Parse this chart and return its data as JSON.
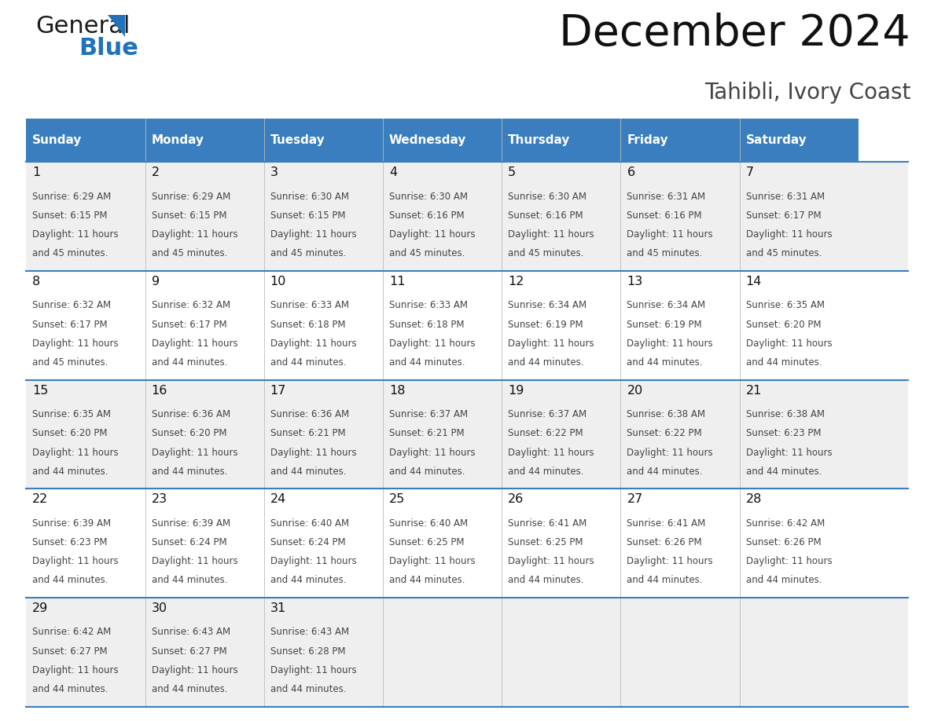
{
  "title": "December 2024",
  "subtitle": "Tahibli, Ivory Coast",
  "days_of_week": [
    "Sunday",
    "Monday",
    "Tuesday",
    "Wednesday",
    "Thursday",
    "Friday",
    "Saturday"
  ],
  "header_bg": "#3A7EBF",
  "header_text": "#FFFFFF",
  "row_bg_odd": "#EFEFEF",
  "row_bg_even": "#FFFFFF",
  "cell_text_color": "#444444",
  "day_num_color": "#111111",
  "border_color": "#3A7EBF",
  "calendar_data": [
    [
      {
        "day": 1,
        "sunrise": "6:29 AM",
        "sunset": "6:15 PM",
        "daylight_suffix": "45 minutes."
      },
      {
        "day": 2,
        "sunrise": "6:29 AM",
        "sunset": "6:15 PM",
        "daylight_suffix": "45 minutes."
      },
      {
        "day": 3,
        "sunrise": "6:30 AM",
        "sunset": "6:15 PM",
        "daylight_suffix": "45 minutes."
      },
      {
        "day": 4,
        "sunrise": "6:30 AM",
        "sunset": "6:16 PM",
        "daylight_suffix": "45 minutes."
      },
      {
        "day": 5,
        "sunrise": "6:30 AM",
        "sunset": "6:16 PM",
        "daylight_suffix": "45 minutes."
      },
      {
        "day": 6,
        "sunrise": "6:31 AM",
        "sunset": "6:16 PM",
        "daylight_suffix": "45 minutes."
      },
      {
        "day": 7,
        "sunrise": "6:31 AM",
        "sunset": "6:17 PM",
        "daylight_suffix": "45 minutes."
      }
    ],
    [
      {
        "day": 8,
        "sunrise": "6:32 AM",
        "sunset": "6:17 PM",
        "daylight_suffix": "45 minutes."
      },
      {
        "day": 9,
        "sunrise": "6:32 AM",
        "sunset": "6:17 PM",
        "daylight_suffix": "44 minutes."
      },
      {
        "day": 10,
        "sunrise": "6:33 AM",
        "sunset": "6:18 PM",
        "daylight_suffix": "44 minutes."
      },
      {
        "day": 11,
        "sunrise": "6:33 AM",
        "sunset": "6:18 PM",
        "daylight_suffix": "44 minutes."
      },
      {
        "day": 12,
        "sunrise": "6:34 AM",
        "sunset": "6:19 PM",
        "daylight_suffix": "44 minutes."
      },
      {
        "day": 13,
        "sunrise": "6:34 AM",
        "sunset": "6:19 PM",
        "daylight_suffix": "44 minutes."
      },
      {
        "day": 14,
        "sunrise": "6:35 AM",
        "sunset": "6:20 PM",
        "daylight_suffix": "44 minutes."
      }
    ],
    [
      {
        "day": 15,
        "sunrise": "6:35 AM",
        "sunset": "6:20 PM",
        "daylight_suffix": "44 minutes."
      },
      {
        "day": 16,
        "sunrise": "6:36 AM",
        "sunset": "6:20 PM",
        "daylight_suffix": "44 minutes."
      },
      {
        "day": 17,
        "sunrise": "6:36 AM",
        "sunset": "6:21 PM",
        "daylight_suffix": "44 minutes."
      },
      {
        "day": 18,
        "sunrise": "6:37 AM",
        "sunset": "6:21 PM",
        "daylight_suffix": "44 minutes."
      },
      {
        "day": 19,
        "sunrise": "6:37 AM",
        "sunset": "6:22 PM",
        "daylight_suffix": "44 minutes."
      },
      {
        "day": 20,
        "sunrise": "6:38 AM",
        "sunset": "6:22 PM",
        "daylight_suffix": "44 minutes."
      },
      {
        "day": 21,
        "sunrise": "6:38 AM",
        "sunset": "6:23 PM",
        "daylight_suffix": "44 minutes."
      }
    ],
    [
      {
        "day": 22,
        "sunrise": "6:39 AM",
        "sunset": "6:23 PM",
        "daylight_suffix": "44 minutes."
      },
      {
        "day": 23,
        "sunrise": "6:39 AM",
        "sunset": "6:24 PM",
        "daylight_suffix": "44 minutes."
      },
      {
        "day": 24,
        "sunrise": "6:40 AM",
        "sunset": "6:24 PM",
        "daylight_suffix": "44 minutes."
      },
      {
        "day": 25,
        "sunrise": "6:40 AM",
        "sunset": "6:25 PM",
        "daylight_suffix": "44 minutes."
      },
      {
        "day": 26,
        "sunrise": "6:41 AM",
        "sunset": "6:25 PM",
        "daylight_suffix": "44 minutes."
      },
      {
        "day": 27,
        "sunrise": "6:41 AM",
        "sunset": "6:26 PM",
        "daylight_suffix": "44 minutes."
      },
      {
        "day": 28,
        "sunrise": "6:42 AM",
        "sunset": "6:26 PM",
        "daylight_suffix": "44 minutes."
      }
    ],
    [
      {
        "day": 29,
        "sunrise": "6:42 AM",
        "sunset": "6:27 PM",
        "daylight_suffix": "44 minutes."
      },
      {
        "day": 30,
        "sunrise": "6:43 AM",
        "sunset": "6:27 PM",
        "daylight_suffix": "44 minutes."
      },
      {
        "day": 31,
        "sunrise": "6:43 AM",
        "sunset": "6:28 PM",
        "daylight_suffix": "44 minutes."
      },
      null,
      null,
      null,
      null
    ]
  ],
  "logo_general_color": "#1A1A1A",
  "logo_blue_color": "#2272B9",
  "logo_triangle_color": "#2272B9"
}
